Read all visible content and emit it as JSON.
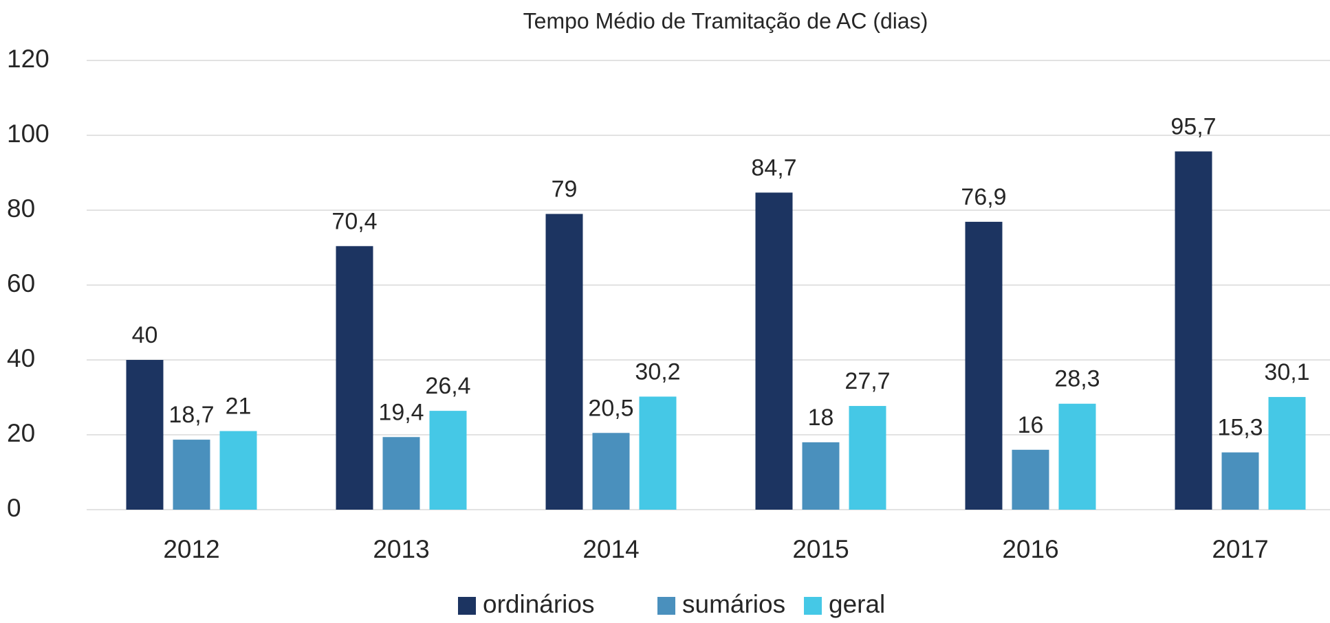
{
  "chart_data": {
    "type": "bar",
    "title": "Tempo Médio de Tramitação de AC (dias)",
    "categories": [
      "2012",
      "2013",
      "2014",
      "2015",
      "2016",
      "2017"
    ],
    "series": [
      {
        "name": "ordinários",
        "color": "#1c3461",
        "values": [
          40,
          70.4,
          79,
          84.7,
          76.9,
          95.7
        ],
        "value_labels": [
          "40",
          "70,4",
          "79",
          "84,7",
          "76,9",
          "95,7"
        ]
      },
      {
        "name": "sumários",
        "color": "#4a90bd",
        "values": [
          18.7,
          19.4,
          20.5,
          18,
          16,
          15.3
        ],
        "value_labels": [
          "18,7",
          "19,4",
          "20,5",
          "18",
          "16",
          "15,3"
        ]
      },
      {
        "name": "geral",
        "color": "#45c8e6",
        "values": [
          21,
          26.4,
          30.2,
          27.7,
          28.3,
          30.1
        ],
        "value_labels": [
          "21",
          "26,4",
          "30,2",
          "27,7",
          "28,3",
          "30,1"
        ]
      }
    ],
    "ylim": [
      0,
      120
    ],
    "yticks": [
      0,
      20,
      40,
      60,
      80,
      100,
      120
    ],
    "grid": true,
    "legend": "bottom"
  }
}
